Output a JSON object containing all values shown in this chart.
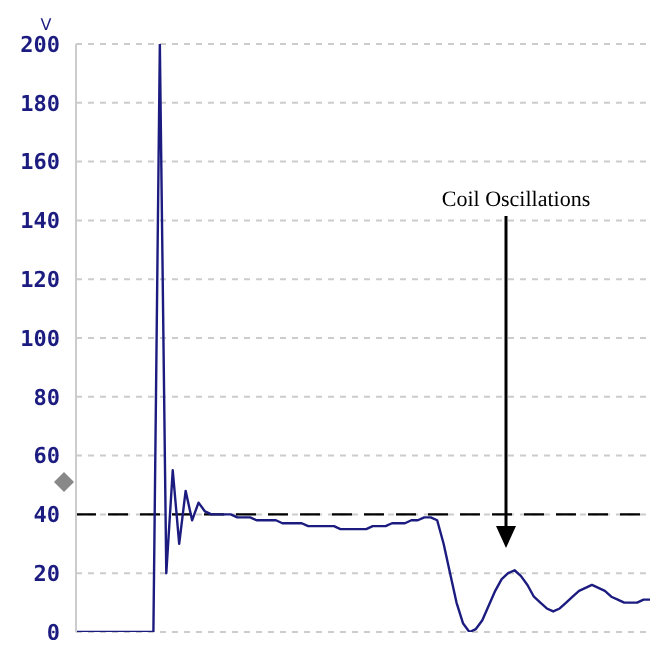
{
  "chart_data": {
    "type": "line",
    "ylabel": "V",
    "categories": [
      null,
      null,
      null,
      null,
      null,
      null,
      null,
      null,
      null,
      null,
      null,
      null,
      null,
      null,
      null,
      null,
      null,
      null,
      null,
      null,
      null,
      null,
      null,
      null,
      null,
      null,
      null,
      null,
      null,
      null,
      null,
      null,
      null,
      null,
      null,
      null,
      null,
      null,
      null,
      null,
      null,
      null,
      null,
      null,
      null,
      null,
      null,
      null,
      null,
      null,
      null,
      null,
      null,
      null,
      null,
      null,
      null,
      null,
      null,
      null,
      null,
      null,
      null,
      null,
      null,
      null,
      null,
      null,
      null,
      null,
      null,
      null,
      null,
      null,
      null,
      null,
      null,
      null,
      null,
      null,
      null,
      null,
      null,
      null,
      null,
      null,
      null,
      null,
      null,
      null
    ],
    "ylim": [
      0,
      200
    ],
    "yticks": [
      0,
      20,
      40,
      60,
      80,
      100,
      120,
      140,
      160,
      180,
      200
    ],
    "tick_labels": "y",
    "grid": "y",
    "marker": "none",
    "line_style": "solid",
    "series": [
      {
        "color": "#1c1c80",
        "values": [
          0,
          0,
          0,
          0,
          0,
          0,
          0,
          0,
          0,
          0,
          0,
          0,
          0,
          200,
          20,
          55,
          30,
          48,
          38,
          44,
          41,
          40,
          40,
          40,
          40,
          39,
          39,
          39,
          38,
          38,
          38,
          38,
          37,
          37,
          37,
          37,
          36,
          36,
          36,
          36,
          36,
          35,
          35,
          35,
          35,
          35,
          36,
          36,
          36,
          37,
          37,
          37,
          38,
          38,
          39,
          39,
          38,
          30,
          20,
          10,
          3,
          0,
          1,
          4,
          9,
          14,
          18,
          20,
          21,
          19,
          16,
          12,
          10,
          8,
          7,
          8,
          10,
          12,
          14,
          15,
          16,
          15,
          14,
          12,
          11,
          10,
          10,
          10,
          11,
          11
        ]
      }
    ],
    "ref_lines": [
      {
        "axis": "y",
        "value": 40,
        "color": "#000000",
        "line_style": "dashed"
      }
    ],
    "annotations": [
      "Coil Oscillations"
    ]
  }
}
